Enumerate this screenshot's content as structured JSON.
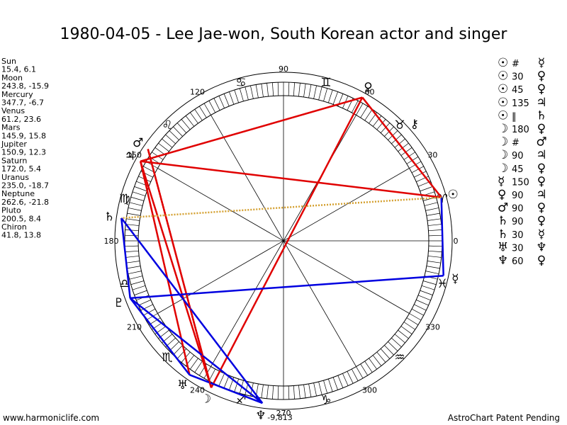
{
  "title": "1980-04-05 - Lee Jae-won, South Korean actor and singer",
  "planets": [
    {
      "name": "Sun",
      "glyph": "☉",
      "position": "15.4, 6.1"
    },
    {
      "name": "Moon",
      "glyph": "☽",
      "position": "243.8, -15.9"
    },
    {
      "name": "Mercury",
      "glyph": "☿",
      "position": "347.7, -6.7"
    },
    {
      "name": "Venus",
      "glyph": "♀",
      "position": "61.2, 23.6"
    },
    {
      "name": "Mars",
      "glyph": "♂",
      "position": "145.9, 15.8"
    },
    {
      "name": "Jupiter",
      "glyph": "♃",
      "position": "150.9, 12.3"
    },
    {
      "name": "Saturn",
      "glyph": "♄",
      "position": "172.0, 5.4"
    },
    {
      "name": "Uranus",
      "glyph": "♅",
      "position": "235.0, -18.7"
    },
    {
      "name": "Neptune",
      "glyph": "♆",
      "position": "262.6, -21.8"
    },
    {
      "name": "Pluto",
      "glyph": "♇",
      "position": "200.5, 8.4"
    },
    {
      "name": "Chiron",
      "glyph": "⚷",
      "position": "41.8, 13.8"
    }
  ],
  "degree_labels": [
    "0",
    "30",
    "60",
    "90",
    "120",
    "150",
    "180",
    "210",
    "240",
    "270",
    "300",
    "330"
  ],
  "signs": [
    "♈",
    "♉",
    "♊",
    "♋",
    "♌",
    "♍",
    "♎",
    "♏",
    "♐",
    "♑",
    "♒",
    "♓"
  ],
  "aspects": [
    [
      "☉",
      "#",
      "☿"
    ],
    [
      "☉",
      "30",
      "♀"
    ],
    [
      "☉",
      "45",
      "♀"
    ],
    [
      "☉",
      "135",
      "♃"
    ],
    [
      "☉",
      "‖",
      "♄"
    ],
    [
      "☽",
      "180",
      "♀"
    ],
    [
      "☽",
      "#",
      "♂"
    ],
    [
      "☽",
      "90",
      "♃"
    ],
    [
      "☽",
      "45",
      "♀"
    ],
    [
      "☿",
      "150",
      "♀"
    ],
    [
      "♀",
      "90",
      "♃"
    ],
    [
      "♂",
      "90",
      "♀"
    ],
    [
      "♄",
      "90",
      "♀"
    ],
    [
      "♄",
      "30",
      "☿"
    ],
    [
      "♅",
      "30",
      "♆"
    ],
    [
      "♆",
      "60",
      "♀"
    ]
  ],
  "bottom_value": "-9,813",
  "footer_left": "www.harmoniclife.com",
  "footer_right": "AstroChart Patent Pending"
}
